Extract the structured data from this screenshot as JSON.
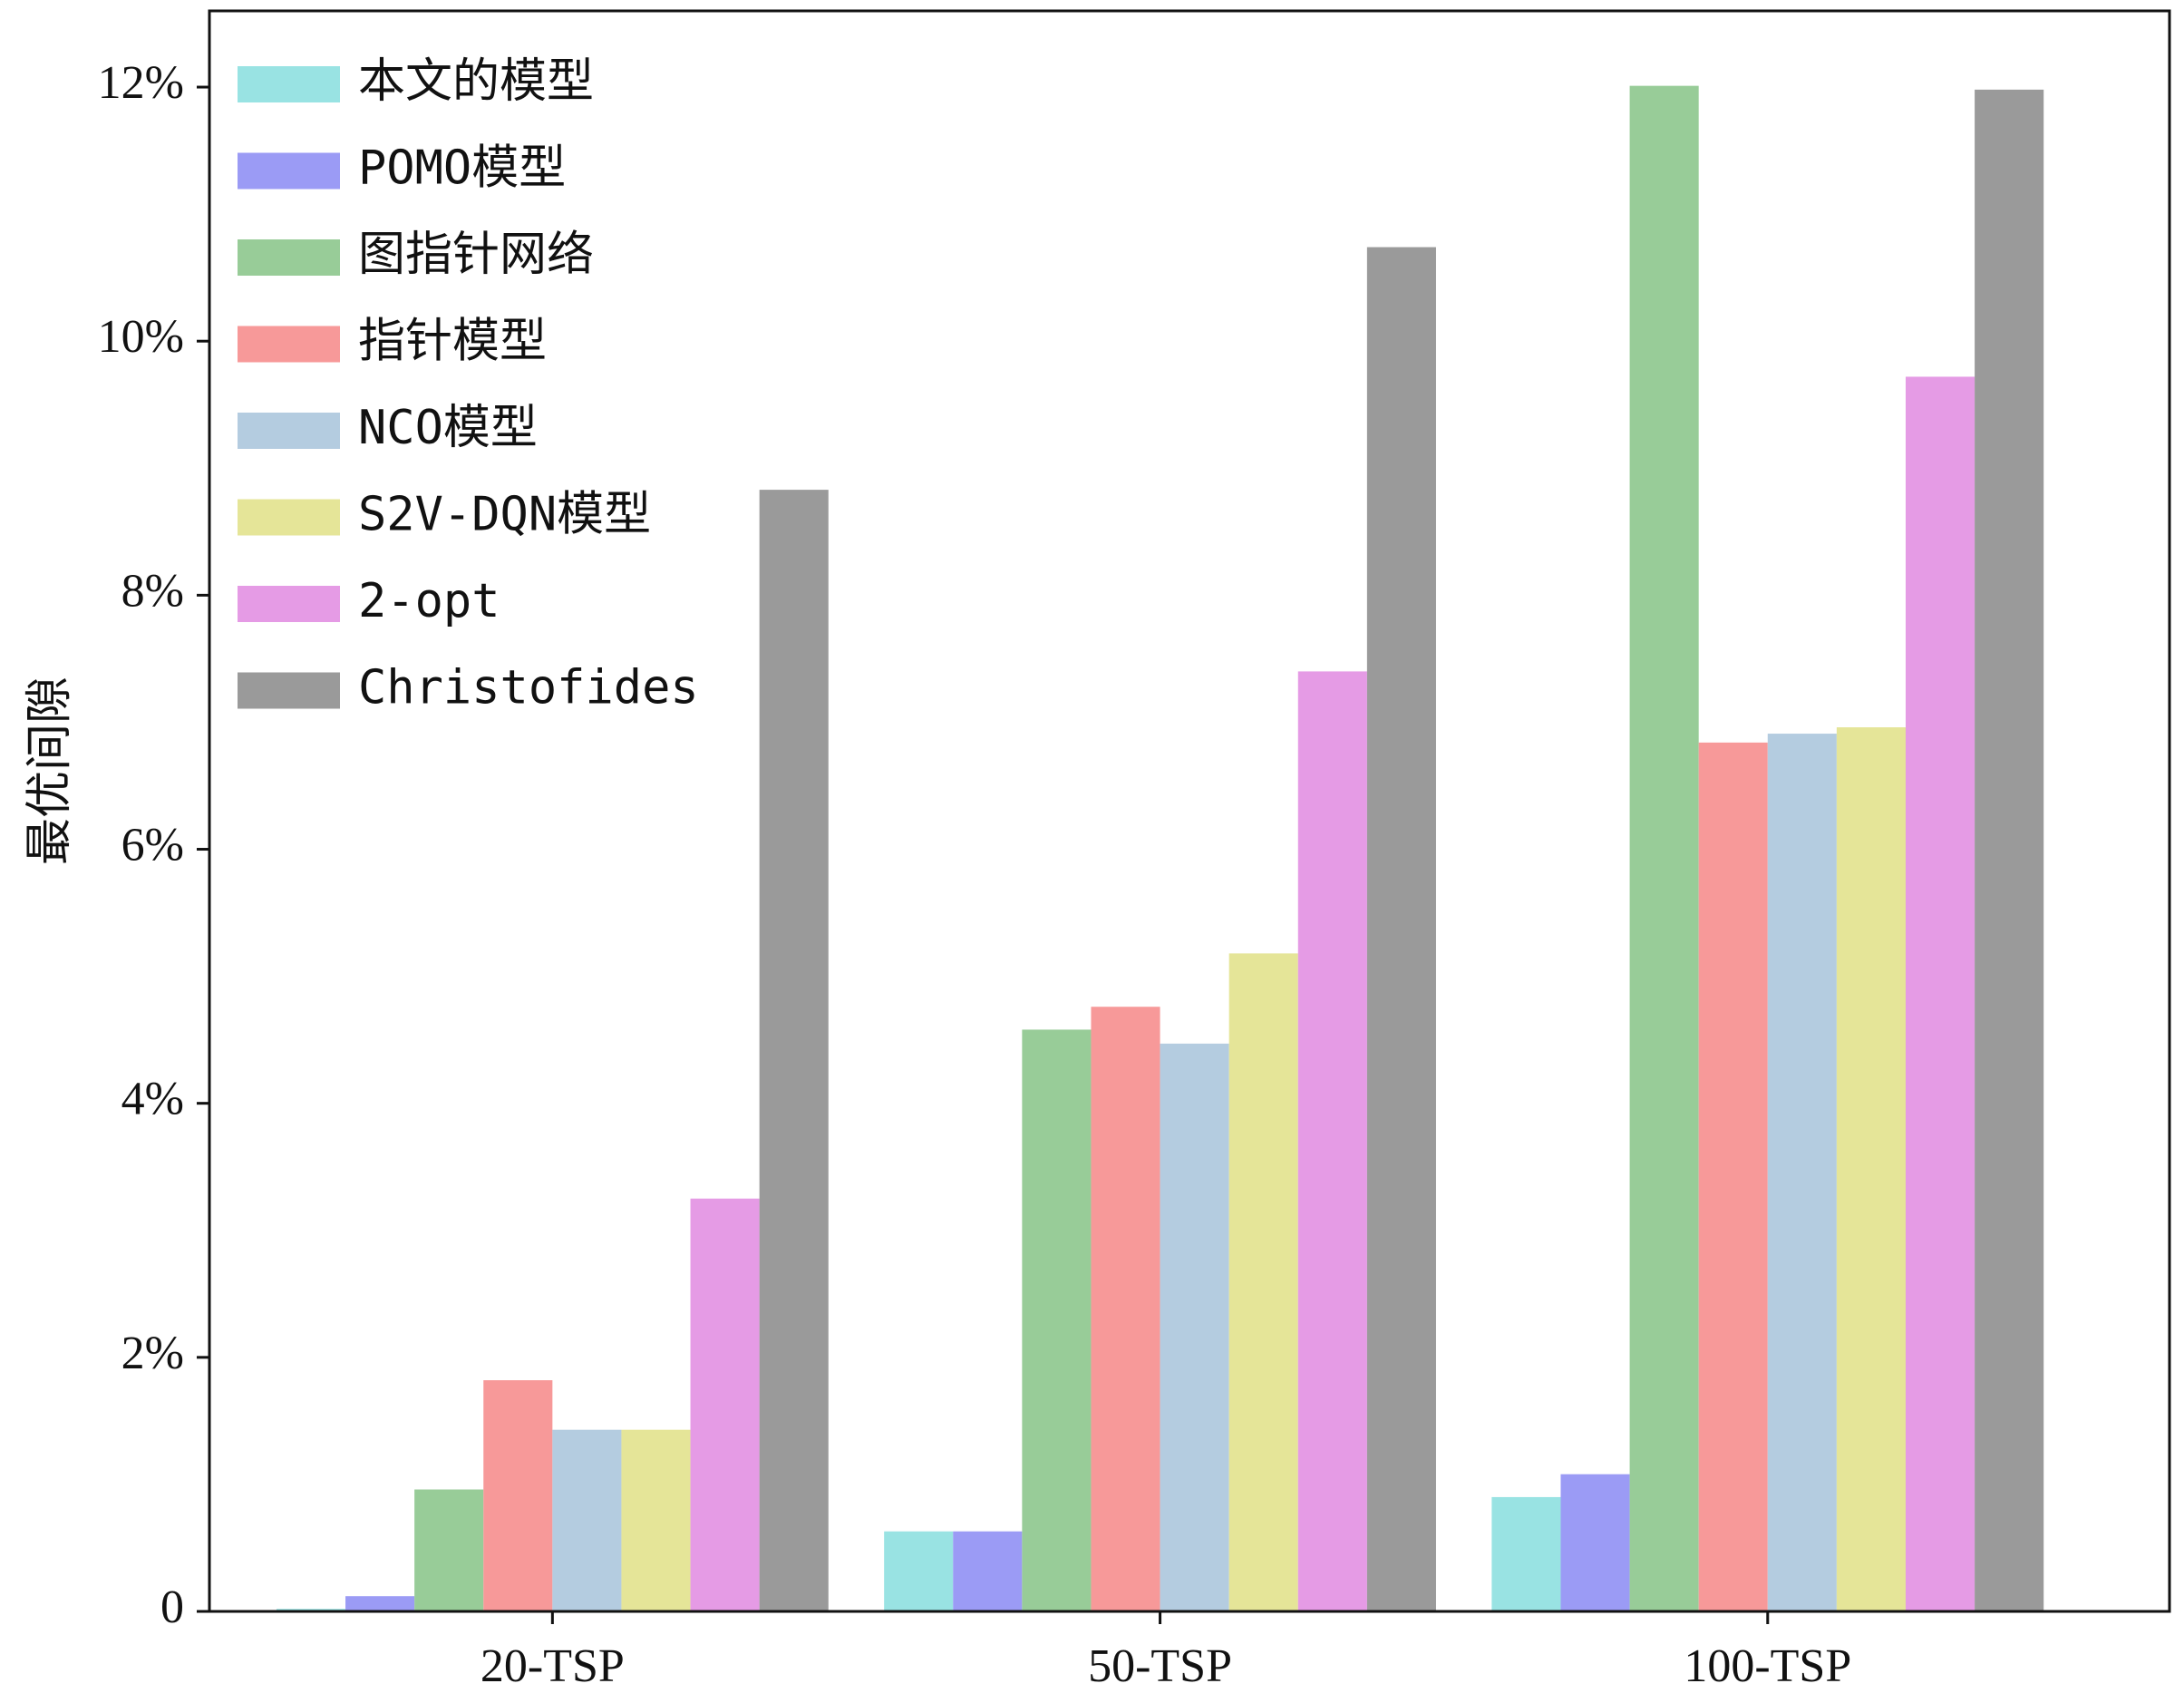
{
  "chart_data": {
    "type": "bar",
    "ylabel": "最优间隙",
    "categories": [
      "20-TSP",
      "50-TSP",
      "100-TSP"
    ],
    "series": [
      {
        "name": "本文的模型",
        "color": "#99e3e3",
        "values": [
          0.02,
          0.63,
          0.9
        ]
      },
      {
        "name": "POMO模型",
        "color": "#9b9bf5",
        "values": [
          0.12,
          0.63,
          1.08
        ]
      },
      {
        "name": "图指针网络",
        "color": "#98cc98",
        "values": [
          0.96,
          4.58,
          12.01
        ]
      },
      {
        "name": "指针模型",
        "color": "#f79999",
        "values": [
          1.82,
          4.76,
          6.84
        ]
      },
      {
        "name": "NCO模型",
        "color": "#b4cce0",
        "values": [
          1.43,
          4.47,
          6.91
        ]
      },
      {
        "name": "S2V-DQN模型",
        "color": "#e5e598",
        "values": [
          1.43,
          5.18,
          6.96
        ]
      },
      {
        "name": "2-opt",
        "color": "#e59be5",
        "values": [
          3.25,
          7.4,
          9.72
        ]
      },
      {
        "name": "Christofides",
        "color": "#9a9a9a",
        "values": [
          8.83,
          10.74,
          11.98
        ]
      }
    ],
    "ylim": [
      0,
      12.6
    ],
    "yticks": [
      0,
      {
        "value": 2,
        "label": "2%"
      },
      {
        "value": 4,
        "label": "4%"
      },
      {
        "value": 6,
        "label": "6%"
      },
      {
        "value": 8,
        "label": "8%"
      },
      {
        "value": 10,
        "label": "10%"
      },
      {
        "value": 12,
        "label": "12%"
      }
    ],
    "legend": "upper left"
  }
}
